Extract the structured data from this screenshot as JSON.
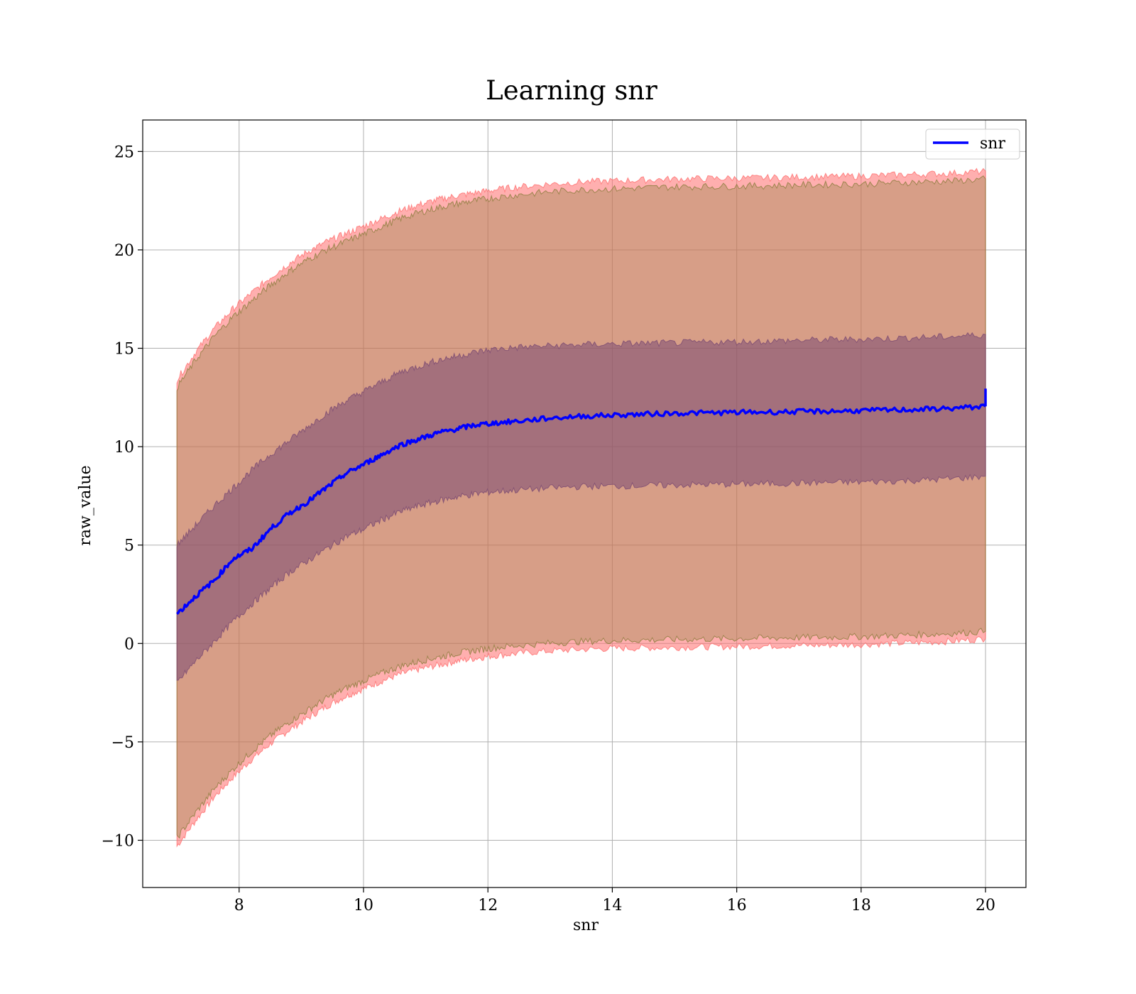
{
  "chart_data": {
    "type": "line",
    "title": "Learning snr",
    "xlabel": "snr",
    "ylabel": "raw_value",
    "xlim": [
      6.45,
      20.65
    ],
    "ylim": [
      -12.4,
      26.6
    ],
    "xticks": [
      8,
      10,
      12,
      14,
      16,
      18,
      20
    ],
    "yticks": [
      -10,
      -5,
      0,
      5,
      10,
      15,
      20,
      25
    ],
    "ytick_labels": [
      "−10",
      "−5",
      "0",
      "5",
      "10",
      "15",
      "20",
      "25"
    ],
    "xtick_labels": [
      "8",
      "10",
      "12",
      "14",
      "16",
      "18",
      "20"
    ],
    "grid": true,
    "legend_position": "top-right",
    "x": [
      7.0,
      7.3,
      7.6,
      7.9,
      8.2,
      8.5,
      8.8,
      9.1,
      9.4,
      9.7,
      10.0,
      10.3,
      10.6,
      10.9,
      11.2,
      11.5,
      11.8,
      12.1,
      12.5,
      13.0,
      13.5,
      14.0,
      14.5,
      15.0,
      15.5,
      16.0,
      16.5,
      17.0,
      17.5,
      18.0,
      18.5,
      19.0,
      19.5,
      20.0
    ],
    "series": [
      {
        "name": "snr",
        "color": "#0000ff",
        "values": [
          1.5,
          2.4,
          3.2,
          4.3,
          4.8,
          5.8,
          6.6,
          7.2,
          7.9,
          8.6,
          9.1,
          9.6,
          10.1,
          10.4,
          10.7,
          10.9,
          11.1,
          11.2,
          11.3,
          11.45,
          11.55,
          11.6,
          11.65,
          11.7,
          11.72,
          11.74,
          11.76,
          11.78,
          11.8,
          11.83,
          11.86,
          11.9,
          11.95,
          12.05
        ]
      }
    ],
    "bands": [
      {
        "color": "#ff6e6e",
        "opacity": 0.55,
        "lower": [
          -10.3,
          -9.0,
          -7.8,
          -6.8,
          -5.9,
          -5.1,
          -4.4,
          -3.8,
          -3.2,
          -2.7,
          -2.3,
          -1.9,
          -1.55,
          -1.3,
          -1.1,
          -0.9,
          -0.75,
          -0.62,
          -0.5,
          -0.38,
          -0.3,
          -0.25,
          -0.22,
          -0.2,
          -0.17,
          -0.15,
          -0.12,
          -0.1,
          -0.08,
          -0.05,
          0.0,
          0.05,
          0.12,
          0.25
        ],
        "upper": [
          13.4,
          14.8,
          16.0,
          17.0,
          17.8,
          18.6,
          19.3,
          19.9,
          20.4,
          20.8,
          21.2,
          21.6,
          22.0,
          22.3,
          22.55,
          22.75,
          22.9,
          23.05,
          23.2,
          23.35,
          23.45,
          23.5,
          23.55,
          23.6,
          23.62,
          23.64,
          23.66,
          23.7,
          23.72,
          23.75,
          23.8,
          23.85,
          23.9,
          24.0
        ]
      },
      {
        "color": "#8b7d3c",
        "opacity": 0.35,
        "lower": [
          -9.9,
          -8.6,
          -7.4,
          -6.4,
          -5.5,
          -4.7,
          -4.0,
          -3.4,
          -2.8,
          -2.3,
          -1.9,
          -1.5,
          -1.15,
          -0.9,
          -0.7,
          -0.5,
          -0.35,
          -0.22,
          -0.1,
          0.02,
          0.1,
          0.15,
          0.18,
          0.2,
          0.23,
          0.25,
          0.28,
          0.3,
          0.32,
          0.35,
          0.4,
          0.45,
          0.52,
          0.62
        ],
        "upper": [
          13.0,
          14.4,
          15.6,
          16.6,
          17.4,
          18.2,
          18.9,
          19.5,
          20.0,
          20.4,
          20.8,
          21.2,
          21.6,
          21.9,
          22.15,
          22.35,
          22.5,
          22.65,
          22.8,
          22.95,
          23.05,
          23.1,
          23.15,
          23.2,
          23.22,
          23.24,
          23.26,
          23.3,
          23.32,
          23.35,
          23.4,
          23.45,
          23.5,
          23.6
        ]
      },
      {
        "color": "#7a4a72",
        "opacity": 0.55,
        "lower": [
          -2.0,
          -0.9,
          0.1,
          1.1,
          2.0,
          2.8,
          3.6,
          4.2,
          4.8,
          5.4,
          5.8,
          6.3,
          6.7,
          7.0,
          7.25,
          7.45,
          7.6,
          7.72,
          7.8,
          7.9,
          7.98,
          8.0,
          8.02,
          8.05,
          8.08,
          8.1,
          8.12,
          8.15,
          8.18,
          8.2,
          8.25,
          8.3,
          8.38,
          8.5
        ],
        "upper": [
          5.0,
          6.0,
          7.0,
          7.9,
          8.8,
          9.6,
          10.3,
          11.0,
          11.7,
          12.3,
          12.8,
          13.3,
          13.8,
          14.1,
          14.4,
          14.6,
          14.8,
          14.95,
          15.05,
          15.12,
          15.18,
          15.22,
          15.25,
          15.27,
          15.3,
          15.33,
          15.36,
          15.4,
          15.43,
          15.46,
          15.5,
          15.55,
          15.6,
          15.7
        ]
      }
    ]
  }
}
